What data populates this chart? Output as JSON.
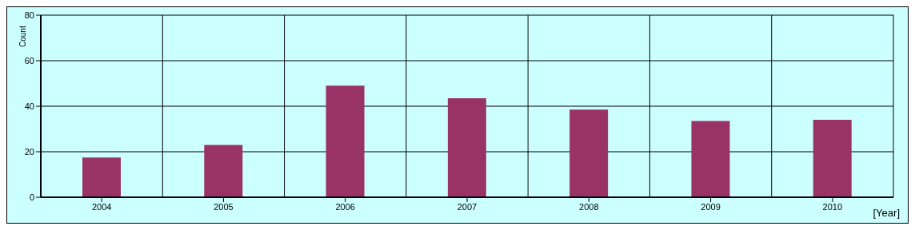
{
  "chart_data": {
    "type": "bar",
    "xlabel": "[Year]",
    "ylabel": "Count",
    "categories": [
      "2004",
      "2005",
      "2006",
      "2007",
      "2008",
      "2009",
      "2010"
    ],
    "values": [
      17.5,
      23,
      49,
      43.5,
      38.5,
      33.5,
      34
    ],
    "color": "#993366",
    "ylim": [
      0,
      80
    ],
    "yticks": [
      0,
      20,
      40,
      60,
      80
    ],
    "grid": true
  }
}
